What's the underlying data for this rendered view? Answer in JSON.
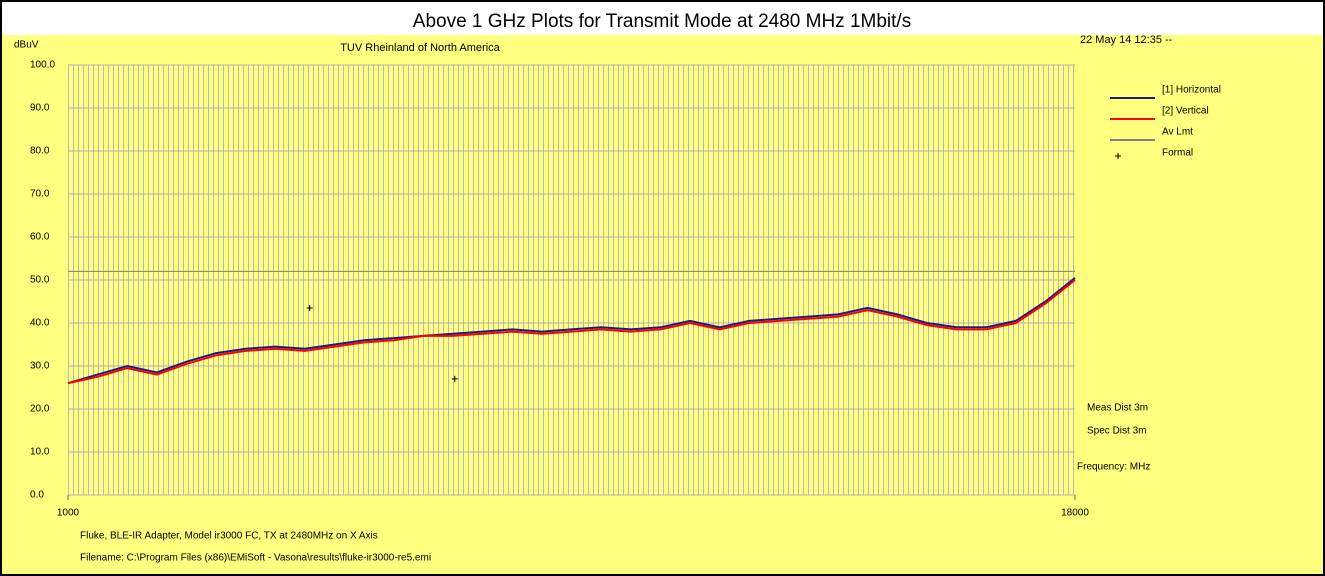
{
  "chart_data": {
    "type": "line",
    "title": "Above 1 GHz Plots for Transmit Mode at 2480 MHz 1Mbit/s",
    "subtitle": "TUV Rheinland of North America",
    "timestamp": "22 May 14 12:35 --",
    "ylabel": "dBuV",
    "xlabel": "Frequency: MHz",
    "notes": [
      "Meas Dist 3m",
      "Spec Dist 3m"
    ],
    "footer": [
      "Fluke, BLE-IR Adapter, Model ir3000 FC, TX at 2480MHz on X Axis",
      "Filename: C:\\Program Files (x86)\\EMiSoft - Vasona\\results\\fluke-ir3000-re5.emi"
    ],
    "xlim": [
      1000,
      18000
    ],
    "xticks": [
      1000,
      18000
    ],
    "ylim": [
      0,
      100
    ],
    "yticks": [
      {
        "value": 0,
        "label": "0.0"
      },
      {
        "value": 10,
        "label": "10.0"
      },
      {
        "value": 20,
        "label": "20.0"
      },
      {
        "value": 30,
        "label": "30.0"
      },
      {
        "value": 40,
        "label": "40.0"
      },
      {
        "value": 50,
        "label": "50.0"
      },
      {
        "value": 60,
        "label": "60.0"
      },
      {
        "value": 70,
        "label": "70.0"
      },
      {
        "value": 80,
        "label": "80.0"
      },
      {
        "value": 90,
        "label": "90.0"
      },
      {
        "value": 100,
        "label": "100.0"
      }
    ],
    "grid": true,
    "series": [
      {
        "name": "[1] Horizontal",
        "color": "#1a1a80",
        "x": [
          1000,
          1500,
          2000,
          2500,
          3000,
          3500,
          4000,
          4500,
          5000,
          5500,
          6000,
          6500,
          7000,
          7500,
          8000,
          8500,
          9000,
          9500,
          10000,
          10500,
          11000,
          11500,
          12000,
          12500,
          13000,
          13500,
          14000,
          14500,
          15000,
          15500,
          16000,
          16500,
          17000,
          17500,
          18000
        ],
        "values": [
          26,
          28,
          30,
          28.5,
          31,
          33,
          34,
          34.5,
          34,
          35,
          36,
          36.5,
          37,
          37.5,
          38,
          38.5,
          38,
          38.5,
          39,
          38.5,
          39,
          40.5,
          39,
          40.5,
          41,
          41.5,
          42,
          43.5,
          42,
          40,
          39,
          39,
          40.5,
          45,
          50.5
        ]
      },
      {
        "name": "[2] Vertical",
        "color": "#ff0000",
        "x": [
          1000,
          1500,
          2000,
          2500,
          3000,
          3500,
          4000,
          4500,
          5000,
          5500,
          6000,
          6500,
          7000,
          7500,
          8000,
          8500,
          9000,
          9500,
          10000,
          10500,
          11000,
          11500,
          12000,
          12500,
          13000,
          13500,
          14000,
          14500,
          15000,
          15500,
          16000,
          16500,
          17000,
          17500,
          18000
        ],
        "values": [
          26,
          27.5,
          29.5,
          28,
          30.5,
          32.5,
          33.5,
          34,
          33.5,
          34.5,
          35.5,
          36,
          37,
          37,
          37.5,
          38,
          37.5,
          38,
          38.5,
          38,
          38.5,
          40,
          38.5,
          40,
          40.5,
          41,
          41.5,
          43,
          41.5,
          39.5,
          38.5,
          38.5,
          40,
          44.5,
          50
        ]
      },
      {
        "name": "Av Lmt",
        "color": "#808080",
        "x": [
          1000,
          18000
        ],
        "values": [
          52,
          52
        ]
      }
    ],
    "markers": {
      "name": "Formal",
      "color": "#000000",
      "x": [
        5080,
        7530
      ],
      "values": [
        43.5,
        27
      ]
    }
  }
}
